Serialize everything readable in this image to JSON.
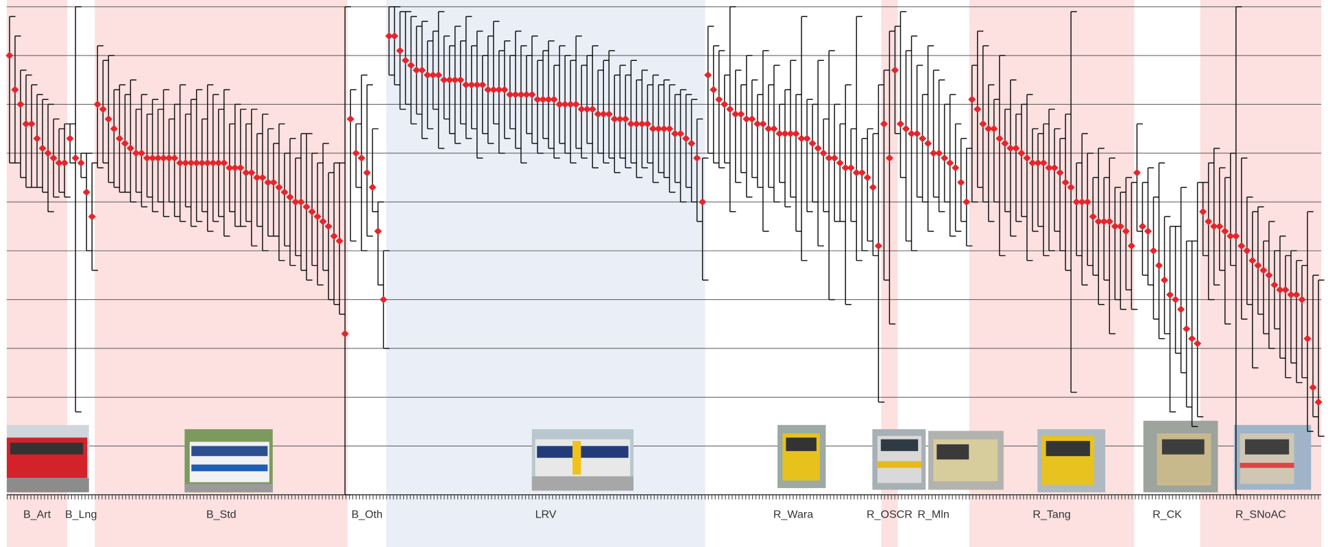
{
  "chart_data": {
    "type": "errorbar",
    "ylim": [
      0,
      10
    ],
    "yticks": [
      0,
      1,
      2,
      3,
      4,
      5,
      6,
      7,
      8,
      9,
      10
    ],
    "grid": true,
    "marker_color": "#e3262c",
    "bar_color": "#111111",
    "groups": [
      {
        "name": "B_Art",
        "color": "#fde0e0",
        "values": [
          9.0,
          8.3,
          8.0,
          7.6,
          7.6,
          7.3,
          7.1,
          7.0,
          6.9,
          6.8,
          6.8
        ],
        "low": [
          6.8,
          6.8,
          6.5,
          6.3,
          6.3,
          6.3,
          6.2,
          5.8,
          6.1,
          6.2,
          6.1
        ],
        "high": [
          9.8,
          9.4,
          8.7,
          8.6,
          8.4,
          8.2,
          8.1,
          8.0,
          7.7,
          7.5,
          7.6
        ]
      },
      {
        "name": "B_Lng",
        "color": "#ffffff",
        "values": [
          7.3,
          6.9,
          6.8,
          6.2,
          5.7
        ],
        "low": [
          6.8,
          1.7,
          6.5,
          5.0,
          4.6
        ],
        "high": [
          7.6,
          10.0,
          7.0,
          7.0,
          6.8
        ]
      },
      {
        "name": "B_Std",
        "color": "#fde0e0",
        "values": [
          8.0,
          7.9,
          7.7,
          7.5,
          7.3,
          7.2,
          7.1,
          7.0,
          7.0,
          6.9,
          6.9,
          6.9,
          6.9,
          6.9,
          6.9,
          6.8,
          6.8,
          6.8,
          6.8,
          6.8,
          6.8,
          6.8,
          6.8,
          6.8,
          6.7,
          6.7,
          6.7,
          6.6,
          6.6,
          6.5,
          6.5,
          6.4,
          6.4,
          6.3,
          6.2,
          6.1,
          6.0,
          6.0,
          5.9,
          5.8,
          5.7,
          5.6,
          5.5,
          5.3,
          5.2,
          3.3
        ],
        "low": [
          6.7,
          6.8,
          6.4,
          6.3,
          6.2,
          6.2,
          6.0,
          6.2,
          5.9,
          6.1,
          5.8,
          6.0,
          5.7,
          6.0,
          5.7,
          5.6,
          5.9,
          5.5,
          5.6,
          5.8,
          5.4,
          5.6,
          5.7,
          5.3,
          5.8,
          5.5,
          5.5,
          5.6,
          5.1,
          5.5,
          5.0,
          5.3,
          5.3,
          4.8,
          5.1,
          4.7,
          4.9,
          4.6,
          4.4,
          4.7,
          4.3,
          4.6,
          4.0,
          3.9,
          3.7,
          0.0
        ],
        "high": [
          9.2,
          8.9,
          9.0,
          8.3,
          8.4,
          8.2,
          8.5,
          7.9,
          8.2,
          7.8,
          8.1,
          7.9,
          8.3,
          7.7,
          8.0,
          8.4,
          7.8,
          8.1,
          8.3,
          7.7,
          8.4,
          8.2,
          7.9,
          8.3,
          7.6,
          8.0,
          7.9,
          7.6,
          7.9,
          7.4,
          7.8,
          7.5,
          7.2,
          7.6,
          7.0,
          7.3,
          6.9,
          7.4,
          7.4,
          7.0,
          6.8,
          7.2,
          6.6,
          6.8,
          6.8,
          10.0
        ]
      },
      {
        "name": "B_Oth",
        "color": "#ffffff",
        "values": [
          7.7,
          7.0,
          6.9,
          6.6,
          6.3,
          5.4,
          4.0
        ],
        "low": [
          5.2,
          6.3,
          5.0,
          5.3,
          5.8,
          4.3,
          3.0
        ],
        "high": [
          8.3,
          7.6,
          8.6,
          8.4,
          7.5,
          6.0,
          5.0
        ]
      },
      {
        "name": "LRV",
        "color": "#e9eef7",
        "values": [
          9.4,
          9.4,
          9.1,
          8.9,
          8.8,
          8.7,
          8.7,
          8.6,
          8.6,
          8.6,
          8.5,
          8.5,
          8.5,
          8.5,
          8.4,
          8.4,
          8.4,
          8.4,
          8.3,
          8.3,
          8.3,
          8.3,
          8.2,
          8.2,
          8.2,
          8.2,
          8.2,
          8.1,
          8.1,
          8.1,
          8.1,
          8.0,
          8.0,
          8.0,
          8.0,
          7.9,
          7.9,
          7.9,
          7.8,
          7.8,
          7.8,
          7.7,
          7.7,
          7.7,
          7.6,
          7.6,
          7.6,
          7.6,
          7.5,
          7.5,
          7.5,
          7.5,
          7.4,
          7.4,
          7.3,
          7.2,
          6.9,
          6.0
        ],
        "low": [
          8.6,
          8.4,
          7.9,
          8.0,
          7.6,
          7.8,
          7.3,
          7.5,
          7.9,
          7.1,
          7.7,
          7.4,
          7.2,
          7.6,
          7.3,
          7.5,
          6.9,
          7.4,
          7.2,
          7.6,
          7.0,
          7.3,
          7.5,
          7.1,
          6.8,
          7.4,
          7.2,
          7.0,
          7.3,
          7.1,
          6.9,
          7.2,
          7.0,
          6.8,
          7.1,
          6.9,
          7.2,
          6.7,
          7.0,
          6.8,
          6.9,
          6.6,
          6.9,
          6.7,
          6.8,
          6.5,
          6.7,
          6.8,
          6.4,
          6.6,
          6.5,
          6.2,
          6.4,
          6.0,
          6.3,
          6.0,
          5.6,
          4.4
        ],
        "high": [
          10.0,
          10.0,
          9.9,
          9.9,
          9.8,
          9.6,
          9.7,
          9.3,
          9.5,
          9.9,
          9.4,
          9.2,
          9.6,
          9.3,
          9.8,
          9.2,
          9.5,
          9.0,
          9.4,
          9.7,
          9.1,
          9.3,
          9.0,
          9.5,
          9.2,
          9.0,
          9.4,
          8.9,
          9.1,
          9.3,
          8.8,
          9.2,
          9.0,
          8.9,
          9.4,
          8.8,
          9.0,
          9.2,
          8.7,
          8.9,
          9.1,
          8.6,
          8.8,
          8.6,
          8.9,
          8.5,
          8.7,
          8.4,
          8.6,
          8.4,
          8.5,
          8.4,
          8.2,
          8.3,
          8.2,
          8.1,
          7.7,
          6.9
        ]
      },
      {
        "name": "R_Wara",
        "color": "#ffffff",
        "values": [
          8.6,
          8.3,
          8.1,
          8.0,
          7.9,
          7.8,
          7.8,
          7.7,
          7.7,
          7.6,
          7.6,
          7.5,
          7.5,
          7.4,
          7.4,
          7.4,
          7.4,
          7.3,
          7.3,
          7.2,
          7.1,
          7.0,
          6.9,
          6.9,
          6.8,
          6.7,
          6.7,
          6.6,
          6.6,
          6.5,
          6.3,
          5.1
        ],
        "low": [
          7.0,
          6.8,
          6.7,
          6.8,
          5.8,
          6.4,
          6.6,
          6.1,
          6.5,
          6.3,
          5.4,
          6.3,
          6.0,
          6.4,
          5.9,
          6.1,
          5.4,
          4.8,
          5.8,
          6.0,
          5.1,
          5.8,
          4.0,
          5.6,
          5.6,
          3.9,
          5.6,
          4.8,
          5.0,
          5.2,
          4.9,
          1.9
        ],
        "high": [
          9.6,
          9.2,
          9.1,
          8.6,
          10.0,
          8.7,
          8.4,
          9.0,
          8.5,
          8.2,
          9.1,
          8.4,
          8.8,
          8.0,
          8.3,
          8.9,
          8.2,
          9.8,
          8.1,
          8.0,
          8.9,
          7.7,
          9.1,
          8.0,
          7.6,
          8.4,
          7.5,
          9.8,
          7.3,
          7.5,
          7.4,
          8.4
        ]
      },
      {
        "name": "R_OSCR",
        "color": "#fde0e0",
        "values": [
          7.6,
          6.9,
          8.7
        ],
        "low": [
          4.4,
          3.5,
          7.4
        ],
        "high": [
          8.7,
          9.5,
          9.6
        ]
      },
      {
        "name": "R_Mln",
        "color": "#ffffff",
        "values": [
          7.6,
          7.5,
          7.4,
          7.4,
          7.3,
          7.2,
          7.0,
          7.0,
          6.9,
          6.8,
          6.7,
          6.4,
          6.0
        ],
        "low": [
          6.5,
          5.2,
          5.0,
          6.1,
          6.0,
          5.4,
          6.1,
          5.8,
          6.0,
          5.3,
          5.4,
          5.6,
          5.1
        ],
        "high": [
          9.9,
          9.1,
          9.4,
          8.8,
          8.2,
          9.2,
          8.7,
          8.5,
          8.0,
          8.2,
          7.6,
          7.3,
          7.1
        ]
      },
      {
        "name": "R_Tang",
        "color": "#fde0e0",
        "values": [
          8.1,
          7.9,
          7.6,
          7.5,
          7.5,
          7.3,
          7.2,
          7.1,
          7.1,
          7.0,
          6.9,
          6.8,
          6.8,
          6.8,
          6.7,
          6.7,
          6.6,
          6.4,
          6.3,
          6.0,
          6.0,
          6.0,
          5.7,
          5.6,
          5.6,
          5.6,
          5.5,
          5.5,
          5.4,
          5.1
        ],
        "low": [
          6.0,
          6.3,
          6.0,
          5.6,
          6.0,
          4.9,
          5.8,
          5.3,
          5.6,
          5.7,
          4.8,
          5.4,
          5.5,
          4.9,
          5.0,
          5.4,
          5.0,
          4.6,
          2.1,
          4.9,
          4.3,
          4.7,
          4.5,
          3.9,
          4.4,
          3.3,
          4.0,
          3.8,
          4.2,
          3.8
        ],
        "high": [
          8.8,
          9.5,
          9.2,
          8.4,
          8.1,
          9.0,
          7.9,
          8.5,
          7.8,
          8.0,
          8.2,
          7.5,
          7.4,
          7.6,
          7.9,
          7.5,
          7.3,
          7.8,
          9.9,
          6.8,
          7.4,
          7.0,
          6.5,
          7.1,
          6.5,
          6.9,
          6.3,
          6.2,
          6.5,
          6.4
        ]
      },
      {
        "name": "R_CK",
        "color": "#ffffff",
        "values": [
          6.6,
          5.5,
          5.4,
          5.0,
          4.7,
          4.4,
          4.1,
          4.0,
          3.8,
          3.4,
          3.2,
          3.1
        ],
        "low": [
          5.4,
          4.5,
          4.3,
          3.6,
          3.2,
          3.3,
          1.7,
          2.9,
          2.5,
          1.8,
          1.4,
          1.6
        ],
        "high": [
          7.6,
          6.4,
          6.7,
          6.1,
          6.8,
          5.7,
          5.5,
          5.5,
          6.3,
          5.2,
          5.2,
          6.4
        ]
      },
      {
        "name": "R_SNoAC",
        "color": "#fde0e0",
        "values": [
          5.8,
          5.6,
          5.5,
          5.5,
          5.4,
          5.3,
          5.3,
          5.1,
          5.0,
          4.8,
          4.7,
          4.6,
          4.5,
          4.3,
          4.2,
          4.2,
          4.1,
          4.1,
          4.0,
          3.2,
          2.2,
          1.9
        ],
        "low": [
          4.9,
          4.0,
          4.3,
          4.6,
          3.5,
          4.7,
          0.0,
          3.6,
          3.9,
          2.6,
          3.7,
          3.3,
          3.0,
          3.4,
          2.8,
          2.4,
          2.7,
          2.3,
          2.4,
          1.3,
          1.6,
          1.2
        ],
        "high": [
          6.4,
          6.8,
          7.1,
          6.7,
          6.5,
          7.0,
          10.0,
          6.9,
          6.1,
          5.8,
          5.9,
          5.2,
          5.6,
          5.0,
          5.3,
          4.9,
          5.0,
          4.8,
          4.7,
          5.8,
          4.5,
          4.4
        ]
      }
    ]
  }
}
